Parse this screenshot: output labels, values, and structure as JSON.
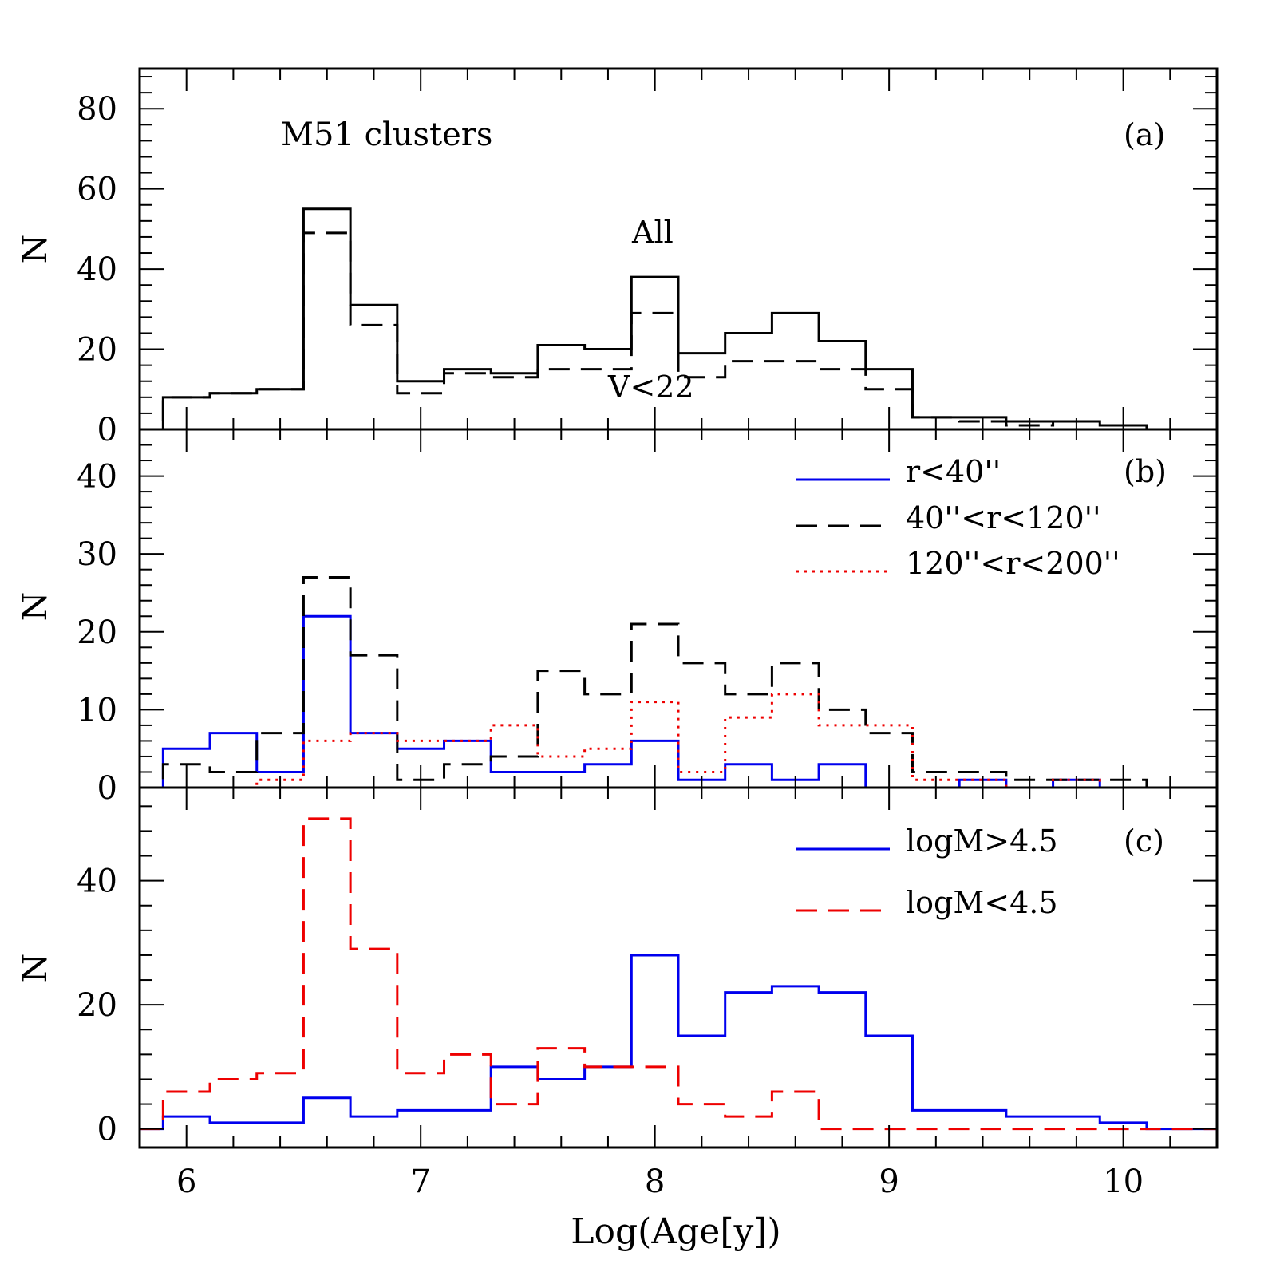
{
  "figure": {
    "xlabel": "Log(Age[y])",
    "xlim": [
      5.8,
      10.4
    ],
    "xticks": [
      6,
      7,
      8,
      9,
      10
    ],
    "xtick_labels": [
      "6",
      "7",
      "8",
      "9",
      "10"
    ],
    "bin_edges": [
      5.9,
      6.1,
      6.3,
      6.5,
      6.7,
      6.9,
      7.1,
      7.3,
      7.5,
      7.7,
      7.9,
      8.1,
      8.3,
      8.5,
      8.7,
      8.9,
      9.1,
      9.3,
      9.5,
      9.7,
      9.9,
      10.1
    ]
  },
  "colors": {
    "black": "#000000",
    "blue": "#0000ee",
    "red": "#ee0000"
  },
  "chart_data": [
    {
      "type": "histogram",
      "panel": "(a)",
      "title": "M51 clusters",
      "ylabel": "N",
      "ylim": [
        0,
        90
      ],
      "yticks": [
        0,
        20,
        40,
        60,
        80
      ],
      "ytick_labels": [
        "0",
        "20",
        "40",
        "60",
        "80"
      ],
      "annotations": [
        "All",
        "V<22"
      ],
      "series": [
        {
          "name": "All",
          "style": "solid",
          "color": "black",
          "values": [
            8,
            9,
            10,
            55,
            31,
            12,
            15,
            14,
            21,
            20,
            38,
            19,
            24,
            29,
            22,
            15,
            3,
            3,
            2,
            2,
            1
          ]
        },
        {
          "name": "V<22",
          "style": "dashed",
          "color": "black",
          "values": [
            8,
            9,
            10,
            49,
            26,
            9,
            14,
            13,
            15,
            15,
            29,
            13,
            17,
            17,
            15,
            10,
            3,
            2,
            1,
            2,
            0
          ]
        }
      ]
    },
    {
      "type": "histogram",
      "panel": "(b)",
      "ylabel": "N",
      "ylim": [
        0,
        46
      ],
      "yticks": [
        0,
        10,
        20,
        30,
        40
      ],
      "ytick_labels": [
        "0",
        "10",
        "20",
        "30",
        "40"
      ],
      "legend_position": "top-right",
      "series": [
        {
          "name": "r<40''",
          "style": "solid",
          "color": "blue",
          "values": [
            5,
            7,
            2,
            22,
            7,
            5,
            6,
            2,
            2,
            3,
            6,
            1,
            3,
            1,
            3,
            0,
            0,
            1,
            0,
            1,
            0
          ]
        },
        {
          "name": "40''<r<120''",
          "style": "dashed",
          "color": "black",
          "values": [
            3,
            2,
            7,
            27,
            17,
            1,
            3,
            4,
            15,
            12,
            21,
            16,
            12,
            16,
            10,
            7,
            2,
            2,
            1,
            1,
            1
          ]
        },
        {
          "name": "120''<r<200''",
          "style": "dotted",
          "color": "red",
          "values": [
            0,
            0,
            1,
            6,
            7,
            6,
            6,
            8,
            4,
            5,
            11,
            2,
            9,
            12,
            8,
            8,
            1,
            1,
            0,
            1,
            0
          ]
        }
      ]
    },
    {
      "type": "histogram",
      "panel": "(c)",
      "ylabel": "N",
      "ylim": [
        -3,
        55
      ],
      "yticks": [
        0,
        20,
        40
      ],
      "ytick_labels": [
        "0",
        "20",
        "40"
      ],
      "legend_position": "top-right",
      "series": [
        {
          "name": "logM>4.5",
          "style": "solid",
          "color": "blue",
          "values": [
            2,
            1,
            1,
            5,
            2,
            3,
            3,
            10,
            8,
            10,
            28,
            15,
            22,
            23,
            22,
            15,
            3,
            3,
            2,
            2,
            1
          ]
        },
        {
          "name": "logM<4.5",
          "style": "dashed",
          "color": "red",
          "values": [
            6,
            8,
            9,
            50,
            29,
            9,
            12,
            4,
            13,
            10,
            10,
            4,
            2,
            6,
            0,
            0,
            0,
            0,
            0,
            0,
            0
          ]
        }
      ]
    }
  ]
}
